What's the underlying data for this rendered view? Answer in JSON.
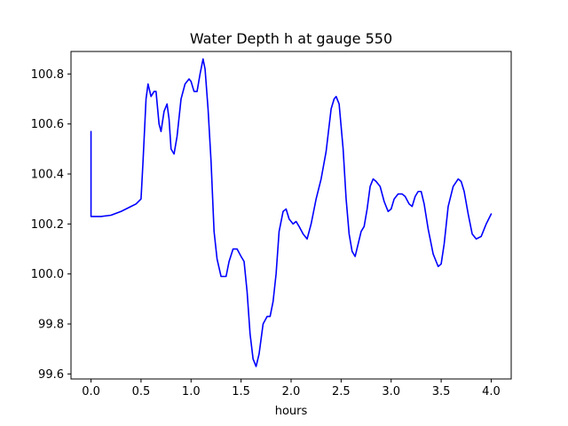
{
  "chart_data": {
    "type": "line",
    "title": "Water Depth h at gauge 550",
    "xlabel": "hours",
    "ylabel": "",
    "xlim": [
      -0.2,
      4.2
    ],
    "ylim": [
      99.58,
      100.89
    ],
    "x_ticks": [
      0.0,
      0.5,
      1.0,
      1.5,
      2.0,
      2.5,
      3.0,
      3.5,
      4.0
    ],
    "x_tick_labels": [
      "0.0",
      "0.5",
      "1.0",
      "1.5",
      "2.0",
      "2.5",
      "3.0",
      "3.5",
      "4.0"
    ],
    "y_ticks": [
      99.6,
      99.8,
      100.0,
      100.2,
      100.4,
      100.6,
      100.8
    ],
    "y_tick_labels": [
      "99.6",
      "99.8",
      "100.0",
      "100.2",
      "100.4",
      "100.6",
      "100.8"
    ],
    "grid": false,
    "colors": {
      "line": "#0000ff"
    },
    "series": [
      {
        "x": [
          0.0,
          0.0,
          0.02,
          0.1,
          0.2,
          0.3,
          0.4,
          0.45,
          0.5,
          0.52,
          0.55,
          0.57,
          0.6,
          0.63,
          0.65,
          0.68,
          0.7,
          0.73,
          0.76,
          0.78,
          0.8,
          0.83,
          0.86,
          0.9,
          0.94,
          0.98,
          1.0,
          1.03,
          1.06,
          1.09,
          1.12,
          1.14,
          1.17,
          1.2,
          1.23,
          1.26,
          1.3,
          1.35,
          1.38,
          1.42,
          1.46,
          1.5,
          1.53,
          1.56,
          1.59,
          1.62,
          1.65,
          1.68,
          1.72,
          1.76,
          1.79,
          1.82,
          1.85,
          1.88,
          1.92,
          1.95,
          1.98,
          2.02,
          2.05,
          2.08,
          2.12,
          2.16,
          2.2,
          2.25,
          2.3,
          2.35,
          2.4,
          2.43,
          2.45,
          2.48,
          2.52,
          2.55,
          2.58,
          2.61,
          2.64,
          2.67,
          2.7,
          2.73,
          2.76,
          2.79,
          2.82,
          2.85,
          2.89,
          2.93,
          2.97,
          3.0,
          3.03,
          3.07,
          3.11,
          3.14,
          3.18,
          3.21,
          3.24,
          3.27,
          3.3,
          3.33,
          3.37,
          3.42,
          3.47,
          3.5,
          3.53,
          3.57,
          3.62,
          3.67,
          3.7,
          3.73,
          3.77,
          3.81,
          3.85,
          3.9,
          3.95,
          4.0
        ],
        "y": [
          100.57,
          100.23,
          100.23,
          100.23,
          100.235,
          100.25,
          100.27,
          100.28,
          100.3,
          100.45,
          100.7,
          100.76,
          100.71,
          100.73,
          100.73,
          100.6,
          100.57,
          100.65,
          100.68,
          100.62,
          100.5,
          100.48,
          100.55,
          100.7,
          100.76,
          100.78,
          100.77,
          100.73,
          100.73,
          100.8,
          100.86,
          100.82,
          100.66,
          100.45,
          100.17,
          100.06,
          99.99,
          99.99,
          100.05,
          100.1,
          100.1,
          100.07,
          100.05,
          99.93,
          99.76,
          99.66,
          99.63,
          99.68,
          99.8,
          99.83,
          99.83,
          99.89,
          100.0,
          100.17,
          100.25,
          100.26,
          100.22,
          100.2,
          100.21,
          100.19,
          100.16,
          100.14,
          100.2,
          100.3,
          100.38,
          100.49,
          100.66,
          100.7,
          100.71,
          100.68,
          100.5,
          100.3,
          100.16,
          100.09,
          100.07,
          100.12,
          100.17,
          100.19,
          100.26,
          100.35,
          100.38,
          100.37,
          100.35,
          100.29,
          100.25,
          100.26,
          100.3,
          100.32,
          100.32,
          100.31,
          100.28,
          100.27,
          100.31,
          100.33,
          100.33,
          100.28,
          100.18,
          100.08,
          100.03,
          100.04,
          100.12,
          100.27,
          100.35,
          100.38,
          100.37,
          100.33,
          100.24,
          100.16,
          100.14,
          100.15,
          100.2,
          100.24
        ]
      }
    ]
  }
}
